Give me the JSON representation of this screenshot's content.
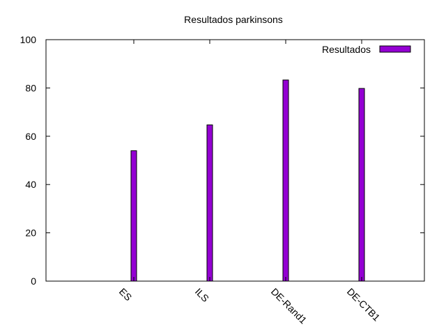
{
  "chart_data": {
    "type": "bar",
    "title": "Resultados parkinsons",
    "xlabel": "",
    "ylabel": "",
    "categories": [
      "ES",
      "ILS",
      "DE-Rand1",
      "DE-CTB1"
    ],
    "series": [
      {
        "name": "Resultados",
        "values": [
          54,
          64.7,
          83.3,
          79.8
        ]
      }
    ],
    "ylim": [
      0,
      100
    ],
    "yticks": [
      "0",
      "20",
      "40",
      "60",
      "80",
      "100"
    ],
    "grid": false,
    "legend_position": "top-right",
    "colors": {
      "bar": "#9400D3",
      "axis": "#000000"
    }
  }
}
